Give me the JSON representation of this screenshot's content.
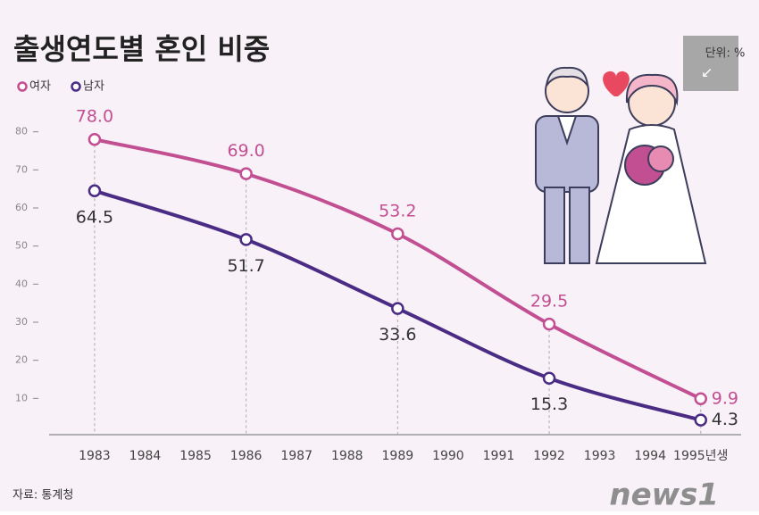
{
  "chart_data": {
    "type": "line",
    "title": "출생연도별 혼인 비중",
    "unit": "단위: %",
    "source": "자료: 통계청",
    "logo": "news1",
    "x": [
      1983,
      1986,
      1989,
      1992,
      1995
    ],
    "series": [
      {
        "name": "여자",
        "color": "#c24f92",
        "values": [
          78,
          69,
          53.2,
          29.5,
          9.9
        ],
        "value_labels": [
          "78.0",
          "69.0",
          "53.2",
          "29.5",
          "9.9"
        ]
      },
      {
        "name": "남자",
        "color": "#4a2c85",
        "values": [
          64.5,
          51.7,
          33.6,
          15.3,
          4.3
        ]
      }
    ],
    "xlim": [
      1982.1,
      1995.8
    ],
    "xticks": [
      1983,
      1984,
      1985,
      1986,
      1987,
      1988,
      1989,
      1990,
      1991,
      1992,
      1993,
      1994,
      {
        "value": 1995,
        "label": "1995년생"
      }
    ],
    "ylim": [
      0,
      90
    ],
    "yticks": [
      10,
      20,
      30,
      40,
      50,
      60,
      70,
      80
    ],
    "drop_lines": true
  }
}
